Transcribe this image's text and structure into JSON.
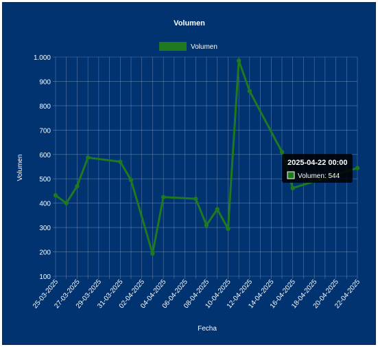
{
  "chart_data": {
    "type": "line",
    "title": "Volumen",
    "xlabel": "Fecha",
    "ylabel": "Volumen",
    "legend": {
      "label": "Volumen",
      "position": "top"
    },
    "colors": {
      "background": "#003370",
      "line": "#1f7a1f",
      "text": "#ffffff",
      "grid": "#7f9ac0"
    },
    "x_tick_labels": [
      "25-03-2025",
      "27-03-2025",
      "29-03-2025",
      "31-03-2025",
      "02-04-2025",
      "04-04-2025",
      "06-04-2025",
      "08-04-2025",
      "10-04-2025",
      "12-04-2025",
      "14-04-2025",
      "16-04-2025",
      "18-04-2025",
      "20-04-2025",
      "22-04-2025"
    ],
    "y_tick_labels": [
      "100",
      "200",
      "300",
      "400",
      "500",
      "600",
      "700",
      "800",
      "900",
      "1.000"
    ],
    "xlim": [
      "2025-03-25",
      "2025-04-22"
    ],
    "ylim": [
      100,
      1000
    ],
    "grid": true,
    "series": [
      {
        "name": "Volumen",
        "points": [
          {
            "x": "2025-03-25",
            "y": 432
          },
          {
            "x": "2025-03-26",
            "y": 400
          },
          {
            "x": "2025-03-27",
            "y": 470
          },
          {
            "x": "2025-03-28",
            "y": 587
          },
          {
            "x": "2025-03-31",
            "y": 570
          },
          {
            "x": "2025-04-01",
            "y": 495
          },
          {
            "x": "2025-04-03",
            "y": 193
          },
          {
            "x": "2025-04-04",
            "y": 425
          },
          {
            "x": "2025-04-07",
            "y": 418
          },
          {
            "x": "2025-04-08",
            "y": 310
          },
          {
            "x": "2025-04-09",
            "y": 375
          },
          {
            "x": "2025-04-10",
            "y": 295
          },
          {
            "x": "2025-04-11",
            "y": 985
          },
          {
            "x": "2025-04-12",
            "y": 860
          },
          {
            "x": "2025-04-15",
            "y": 610
          },
          {
            "x": "2025-04-16",
            "y": 462
          },
          {
            "x": "2025-04-22",
            "y": 544
          }
        ]
      }
    ],
    "tooltip": {
      "title": "2025-04-22 00:00",
      "label": "Volumen: 544",
      "x": "2025-04-22",
      "y": 544
    }
  }
}
